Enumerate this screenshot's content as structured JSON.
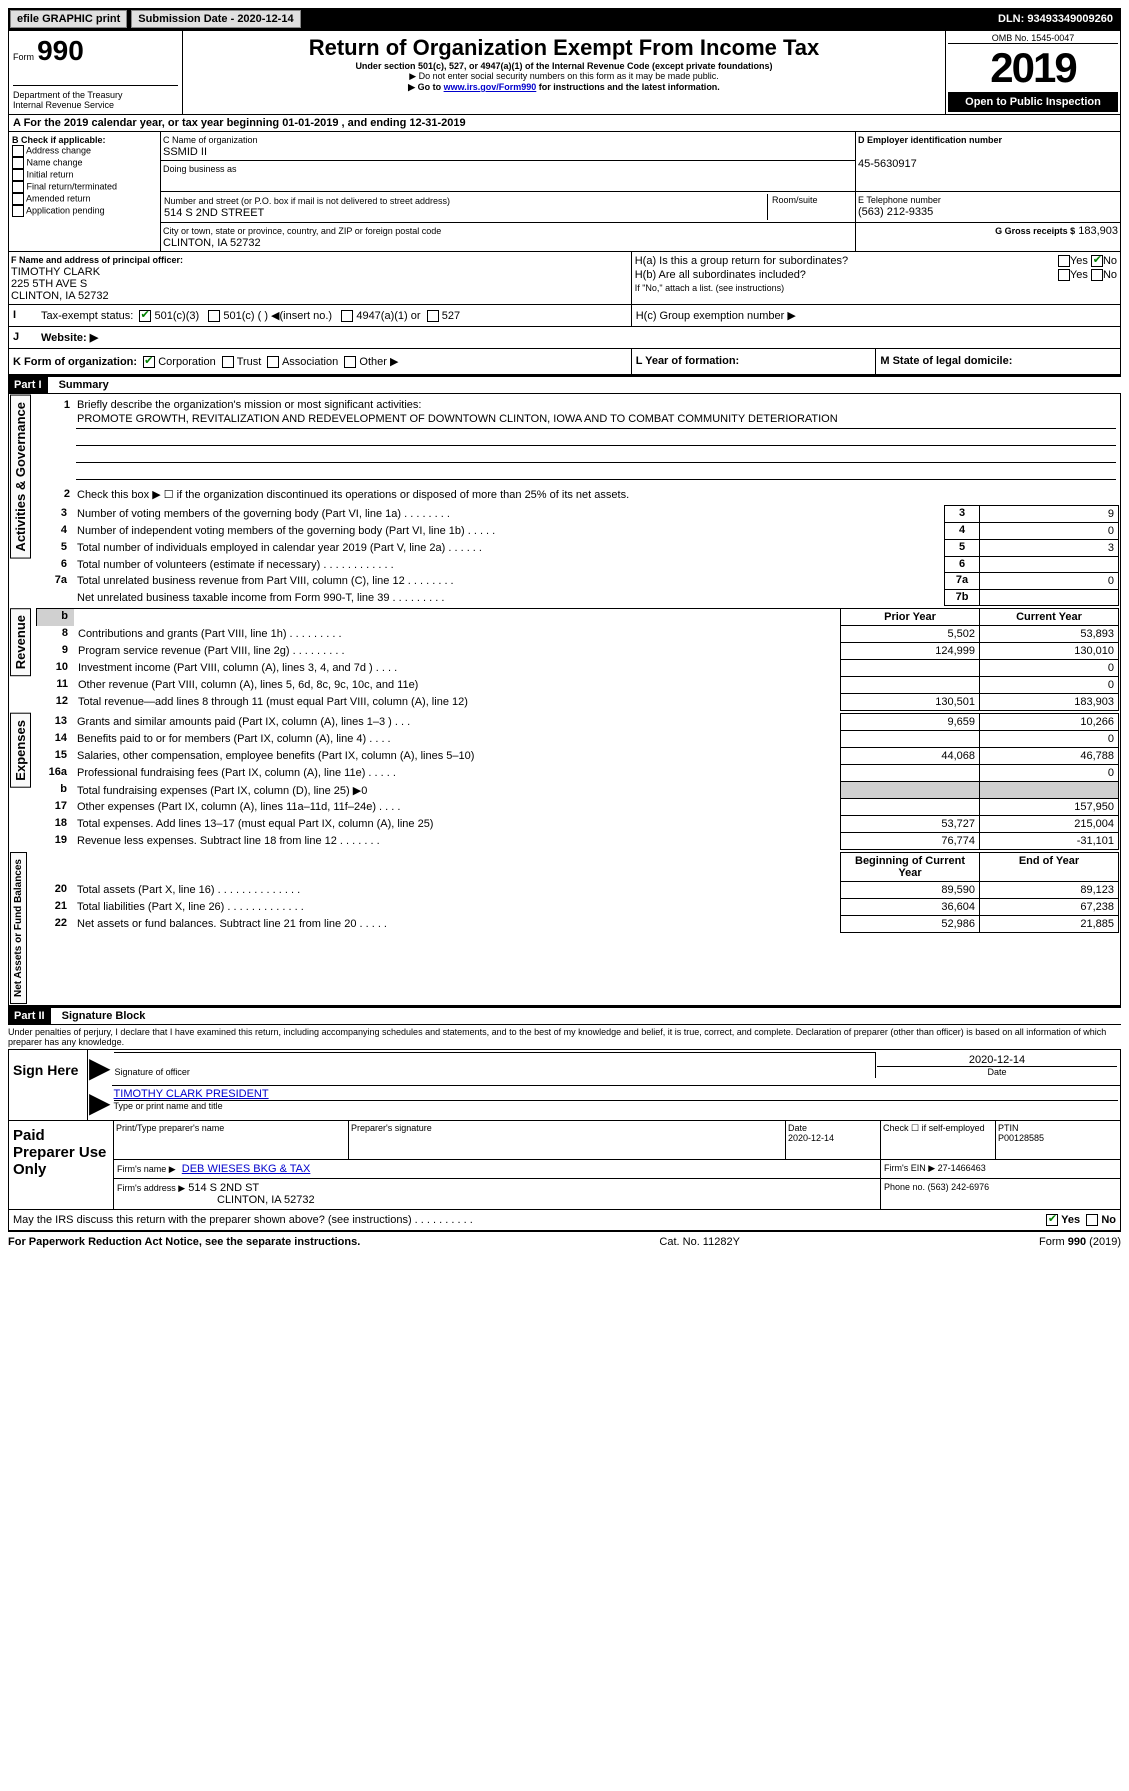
{
  "topbar": {
    "efile": "efile GRAPHIC print",
    "submission_label": "Submission Date - 2020-12-14",
    "dln": "DLN: 93493349009260"
  },
  "header": {
    "form_label": "Form",
    "form_number": "990",
    "dept": "Department of the Treasury\nInternal Revenue Service",
    "title": "Return of Organization Exempt From Income Tax",
    "subtitle": "Under section 501(c), 527, or 4947(a)(1) of the Internal Revenue Code (except private foundations)",
    "note1": "▶ Do not enter social security numbers on this form as it may be made public.",
    "note2_pre": "▶ Go to ",
    "note2_link": "www.irs.gov/Form990",
    "note2_post": " for instructions and the latest information.",
    "omb": "OMB No. 1545-0047",
    "year": "2019",
    "open": "Open to Public Inspection"
  },
  "a": {
    "line": "A For the 2019 calendar year, or tax year beginning 01-01-2019   , and ending 12-31-2019"
  },
  "b": {
    "label": "B Check if applicable:",
    "items": [
      "Address change",
      "Name change",
      "Initial return",
      "Final return/terminated",
      "Amended return",
      "Application pending"
    ]
  },
  "c": {
    "name_label": "C Name of organization",
    "name": "SSMID II",
    "dba_label": "Doing business as",
    "addr_label": "Number and street (or P.O. box if mail is not delivered to street address)",
    "room_label": "Room/suite",
    "addr": "514 S 2ND STREET",
    "city_label": "City or town, state or province, country, and ZIP or foreign postal code",
    "city": "CLINTON, IA  52732"
  },
  "d": {
    "label": "D Employer identification number",
    "value": "45-5630917"
  },
  "e": {
    "label": "E Telephone number",
    "value": "(563) 212-9335"
  },
  "g": {
    "label": "G Gross receipts $",
    "value": "183,903"
  },
  "f": {
    "label": "F  Name and address of principal officer:",
    "name": "TIMOTHY CLARK",
    "addr1": "225 5TH AVE S",
    "addr2": "CLINTON, IA  52732"
  },
  "h": {
    "a": "H(a)  Is this a group return for subordinates?",
    "b": "H(b)  Are all subordinates included?",
    "b_note": "If \"No,\" attach a list. (see instructions)",
    "c": "H(c)  Group exemption number ▶",
    "yes": "Yes",
    "no": "No"
  },
  "i": {
    "label": "Tax-exempt status:",
    "c3": "501(c)(3)",
    "c": "501(c) (  ) ◀(insert no.)",
    "a1": "4947(a)(1) or",
    "s527": "527"
  },
  "j": {
    "label": "Website: ▶"
  },
  "k": {
    "label": "K Form of organization:",
    "corp": "Corporation",
    "trust": "Trust",
    "assoc": "Association",
    "other": "Other ▶"
  },
  "l": {
    "label": "L Year of formation:"
  },
  "m": {
    "label": "M State of legal domicile:"
  },
  "part1": {
    "title": "Part I",
    "subtitle": "Summary",
    "side_gov": "Activities & Governance",
    "side_rev": "Revenue",
    "side_exp": "Expenses",
    "side_net": "Net Assets or Fund Balances",
    "q1": "Briefly describe the organization's mission or most significant activities:",
    "mission": "PROMOTE GROWTH, REVITALIZATION AND REDEVELOPMENT OF DOWNTOWN CLINTON, IOWA AND TO COMBAT COMMUNITY DETERIORATION",
    "q2": "Check this box ▶ ☐  if the organization discontinued its operations or disposed of more than 25% of its net assets.",
    "rows_gov": [
      {
        "n": "3",
        "t": "Number of voting members of the governing body (Part VI, line 1a)  .   .   .   .   .   .   .   .",
        "box": "3",
        "v": "9"
      },
      {
        "n": "4",
        "t": "Number of independent voting members of the governing body (Part VI, line 1b)  .   .   .   .   .",
        "box": "4",
        "v": "0"
      },
      {
        "n": "5",
        "t": "Total number of individuals employed in calendar year 2019 (Part V, line 2a)  .   .   .   .   .   .",
        "box": "5",
        "v": "3"
      },
      {
        "n": "6",
        "t": "Total number of volunteers (estimate if necessary)  .   .   .   .   .   .   .   .   .   .   .   .",
        "box": "6",
        "v": ""
      },
      {
        "n": "7a",
        "t": "Total unrelated business revenue from Part VIII, column (C), line 12  .   .   .   .   .   .   .   .",
        "box": "7a",
        "v": "0"
      },
      {
        "n": "",
        "t": "Net unrelated business taxable income from Form 990-T, line 39  .   .   .   .   .   .   .   .   .",
        "box": "7b",
        "v": ""
      }
    ],
    "col_prior": "Prior Year",
    "col_current": "Current Year",
    "rows_rev": [
      {
        "n": "8",
        "t": "Contributions and grants (Part VIII, line 1h)  .   .   .   .   .   .   .   .   .",
        "p": "5,502",
        "c": "53,893"
      },
      {
        "n": "9",
        "t": "Program service revenue (Part VIII, line 2g)  .   .   .   .   .   .   .   .   .",
        "p": "124,999",
        "c": "130,010"
      },
      {
        "n": "10",
        "t": "Investment income (Part VIII, column (A), lines 3, 4, and 7d )  .   .   .   .",
        "p": "",
        "c": "0"
      },
      {
        "n": "11",
        "t": "Other revenue (Part VIII, column (A), lines 5, 6d, 8c, 9c, 10c, and 11e)",
        "p": "",
        "c": "0"
      },
      {
        "n": "12",
        "t": "Total revenue—add lines 8 through 11 (must equal Part VIII, column (A), line 12)",
        "p": "130,501",
        "c": "183,903"
      }
    ],
    "rows_exp": [
      {
        "n": "13",
        "t": "Grants and similar amounts paid (Part IX, column (A), lines 1–3 )  .   .   .",
        "p": "9,659",
        "c": "10,266"
      },
      {
        "n": "14",
        "t": "Benefits paid to or for members (Part IX, column (A), line 4)  .   .   .   .",
        "p": "",
        "c": "0"
      },
      {
        "n": "15",
        "t": "Salaries, other compensation, employee benefits (Part IX, column (A), lines 5–10)",
        "p": "44,068",
        "c": "46,788"
      },
      {
        "n": "16a",
        "t": "Professional fundraising fees (Part IX, column (A), line 11e)  .   .   .   .   .",
        "p": "",
        "c": "0"
      },
      {
        "n": "b",
        "t": "Total fundraising expenses (Part IX, column (D), line 25) ▶0",
        "p": "shade",
        "c": "shade"
      },
      {
        "n": "17",
        "t": "Other expenses (Part IX, column (A), lines 11a–11d, 11f–24e)  .   .   .   .",
        "p": "",
        "c": "157,950"
      },
      {
        "n": "18",
        "t": "Total expenses. Add lines 13–17 (must equal Part IX, column (A), line 25)",
        "p": "53,727",
        "c": "215,004"
      },
      {
        "n": "19",
        "t": "Revenue less expenses. Subtract line 18 from line 12  .   .   .   .   .   .   .",
        "p": "76,774",
        "c": "-31,101"
      }
    ],
    "col_beg": "Beginning of Current Year",
    "col_end": "End of Year",
    "rows_net": [
      {
        "n": "20",
        "t": "Total assets (Part X, line 16)  .   .   .   .   .   .   .   .   .   .   .   .   .   .",
        "p": "89,590",
        "c": "89,123"
      },
      {
        "n": "21",
        "t": "Total liabilities (Part X, line 26)  .   .   .   .   .   .   .   .   .   .   .   .   .",
        "p": "36,604",
        "c": "67,238"
      },
      {
        "n": "22",
        "t": "Net assets or fund balances. Subtract line 21 from line 20  .   .   .   .   .",
        "p": "52,986",
        "c": "21,885"
      }
    ]
  },
  "part2": {
    "title": "Part II",
    "subtitle": "Signature Block",
    "perjury": "Under penalties of perjury, I declare that I have examined this return, including accompanying schedules and statements, and to the best of my knowledge and belief, it is true, correct, and complete. Declaration of preparer (other than officer) is based on all information of which preparer has any knowledge.",
    "sign_here": "Sign Here",
    "sig_officer": "Signature of officer",
    "sig_date": "2020-12-14",
    "date_label": "Date",
    "officer_name": "TIMOTHY CLARK  PRESIDENT",
    "type_name": "Type or print name and title",
    "paid": "Paid Preparer Use Only",
    "prep_name_label": "Print/Type preparer's name",
    "prep_sig_label": "Preparer's signature",
    "prep_date_label": "Date",
    "prep_date": "2020-12-14",
    "check_self": "Check ☐ if self-employed",
    "ptin_label": "PTIN",
    "ptin": "P00128585",
    "firm_name_label": "Firm's name    ▶",
    "firm_name": "DEB WIESES BKG & TAX",
    "firm_ein_label": "Firm's EIN ▶",
    "firm_ein": "27-1466463",
    "firm_addr_label": "Firm's address ▶",
    "firm_addr1": "514 S 2ND ST",
    "firm_addr2": "CLINTON, IA  52732",
    "phone_label": "Phone no.",
    "phone": "(563) 242-6976",
    "may_irs": "May the IRS discuss this return with the preparer shown above? (see instructions)   .    .    .    .    .    .    .    .    .    .",
    "yes": "Yes",
    "no": "No"
  },
  "footer": {
    "pra": "For Paperwork Reduction Act Notice, see the separate instructions.",
    "cat": "Cat. No. 11282Y",
    "form": "Form 990 (2019)"
  }
}
